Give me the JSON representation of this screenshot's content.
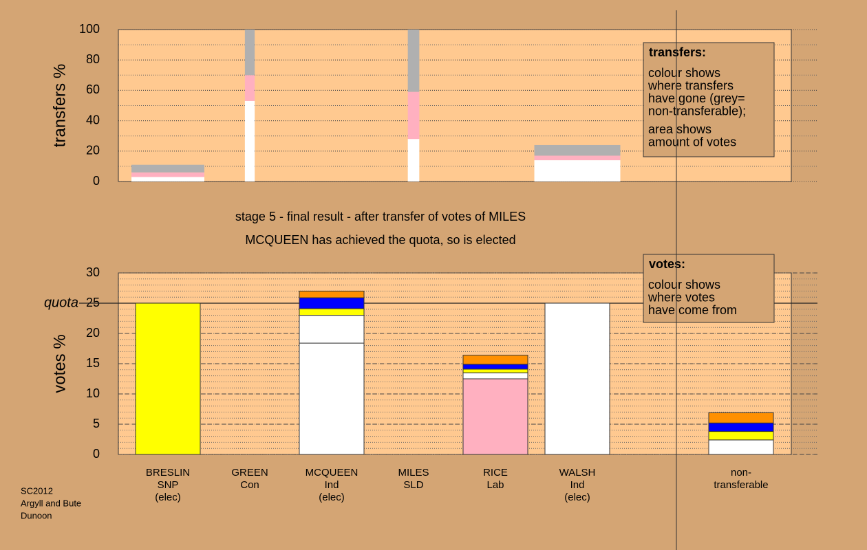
{
  "chart_data": [
    {
      "type": "bar",
      "ylabel": "transfers %",
      "ylim": [
        0,
        100
      ],
      "yticks": [
        0,
        20,
        40,
        60,
        80,
        100
      ],
      "minor_grid": 10,
      "grid": true,
      "categories": [
        null,
        null,
        null,
        null,
        null,
        null,
        null,
        null
      ],
      "widths": [
        0.89,
        0.12,
        null,
        0.14,
        null,
        1.05,
        null,
        null
      ],
      "series": [
        {
          "color": "#ffffff",
          "values": [
            3,
            53,
            null,
            28,
            null,
            14,
            null,
            null
          ]
        },
        {
          "color": "#ffb0c0",
          "values": [
            3,
            17,
            null,
            31,
            null,
            3,
            null,
            null
          ]
        },
        {
          "color": "#b0b0b0",
          "values": [
            5,
            30,
            null,
            41,
            null,
            7,
            null,
            null
          ]
        }
      ],
      "legend_title": "transfers:",
      "legend_text": [
        [
          "colour shows",
          "where transfers",
          "have gone (grey=",
          "non-transferable);"
        ],
        [
          "area shows",
          "amount of votes"
        ]
      ]
    },
    {
      "type": "bar",
      "title": "stage 5 - final result - after transfer of votes of MILES",
      "subtitle": "MCQUEEN has achieved the quota, so is elected",
      "ylabel": "votes %",
      "ylim": [
        0,
        30
      ],
      "yticks": [
        0,
        5,
        10,
        15,
        20,
        25,
        30
      ],
      "minor_grid": 1,
      "grid": true,
      "reference_line": {
        "value": 25,
        "label": "quota"
      },
      "categories": [
        [
          "BRESLIN",
          "SNP",
          "(elec)"
        ],
        [
          "GREEN",
          "Con"
        ],
        [
          "MCQUEEN",
          "Ind",
          "(elec)"
        ],
        [
          "MILES",
          "SLD"
        ],
        [
          "RICE",
          "Lab"
        ],
        [
          "WALSH",
          "Ind",
          "(elec)"
        ],
        null,
        [
          "non-",
          "transferable"
        ]
      ],
      "series": [
        {
          "colors": [
            "#ffff00",
            "#ffffff",
            "#ffffff",
            "#ffffff",
            "#ffb0c0",
            "#ffffff",
            null,
            null
          ],
          "values": [
            25,
            0,
            18.4,
            0,
            12.5,
            25,
            null,
            null
          ]
        },
        {
          "color": "#ffffff",
          "values": [
            null,
            null,
            4.6,
            null,
            1.0,
            null,
            null,
            2.4
          ]
        },
        {
          "color": "#ffff00",
          "values": [
            null,
            null,
            1.1,
            null,
            0.6,
            null,
            null,
            1.4
          ]
        },
        {
          "color": "#0000ff",
          "values": [
            null,
            null,
            1.8,
            null,
            0.8,
            null,
            null,
            1.4
          ]
        },
        {
          "color": "#ff9000",
          "values": [
            null,
            null,
            1.1,
            null,
            1.5,
            null,
            null,
            1.7
          ]
        }
      ],
      "legend_title": "votes:",
      "legend_text": [
        [
          "colour shows",
          "where votes",
          "have come from"
        ]
      ]
    }
  ],
  "footer": [
    "SC2012",
    "Argyll and Bute",
    "Dunoon"
  ]
}
